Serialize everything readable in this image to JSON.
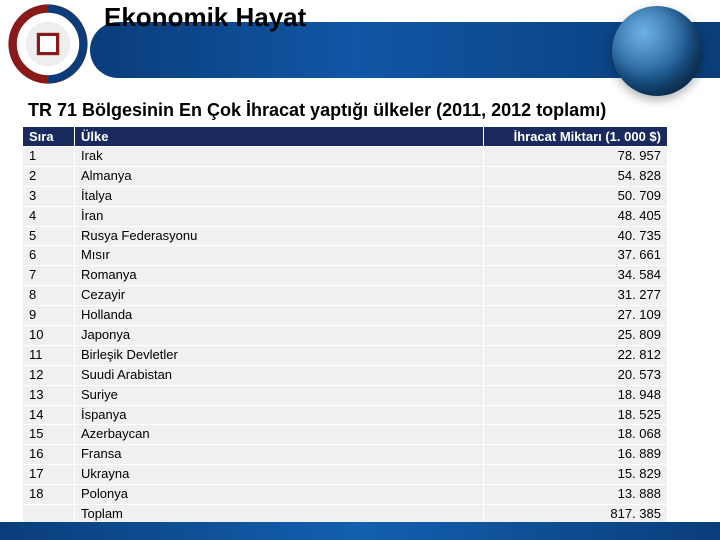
{
  "header": {
    "title": "Ekonomik Hayat"
  },
  "subtitle": "TR 71 Bölgesinin En Çok İhracat yaptığı ülkeler (2011, 2012 toplamı)",
  "table": {
    "columns": {
      "sira": "Sıra",
      "ulke": "Ülke",
      "miktar": "İhracat Miktarı (1. 000 $)"
    },
    "rows": [
      {
        "sira": "1",
        "ulke": "Irak",
        "miktar": "78. 957"
      },
      {
        "sira": "2",
        "ulke": "Almanya",
        "miktar": "54. 828"
      },
      {
        "sira": "3",
        "ulke": "İtalya",
        "miktar": "50. 709"
      },
      {
        "sira": "4",
        "ulke": "İran",
        "miktar": "48. 405"
      },
      {
        "sira": "5",
        "ulke": "Rusya Federasyonu",
        "miktar": "40. 735"
      },
      {
        "sira": "6",
        "ulke": "Mısır",
        "miktar": "37. 661"
      },
      {
        "sira": "7",
        "ulke": "Romanya",
        "miktar": "34. 584"
      },
      {
        "sira": "8",
        "ulke": "Cezayir",
        "miktar": "31. 277"
      },
      {
        "sira": "9",
        "ulke": "Hollanda",
        "miktar": "27. 109"
      },
      {
        "sira": "10",
        "ulke": "Japonya",
        "miktar": "25. 809"
      },
      {
        "sira": "11",
        "ulke": "Birleşik Devletler",
        "miktar": "22. 812"
      },
      {
        "sira": "12",
        "ulke": "Suudi Arabistan",
        "miktar": "20. 573"
      },
      {
        "sira": "13",
        "ulke": "Suriye",
        "miktar": "18. 948"
      },
      {
        "sira": "14",
        "ulke": "İspanya",
        "miktar": "18. 525"
      },
      {
        "sira": "15",
        "ulke": "Azerbaycan",
        "miktar": "18. 068"
      },
      {
        "sira": "16",
        "ulke": "Fransa",
        "miktar": "16. 889"
      },
      {
        "sira": "17",
        "ulke": "Ukrayna",
        "miktar": "15. 829"
      },
      {
        "sira": "18",
        "ulke": "Polonya",
        "miktar": "13. 888"
      },
      {
        "sira": "",
        "ulke": "Toplam",
        "miktar": "817. 385"
      }
    ]
  },
  "colors": {
    "header_band": "#0a3d7a",
    "table_header_bg": "#1a2a5e",
    "table_row_bg": "#f0f0f0",
    "footer": "#0a3d7a"
  }
}
